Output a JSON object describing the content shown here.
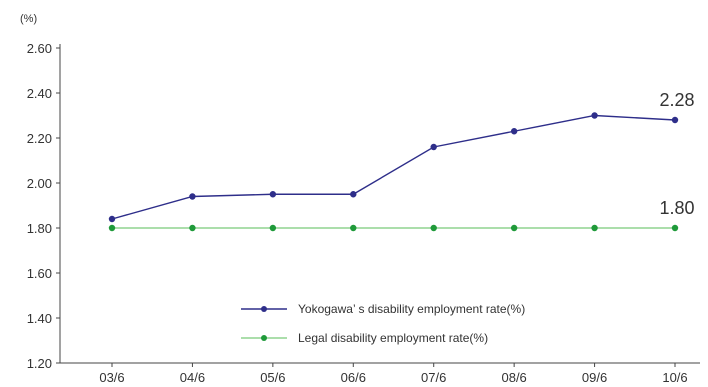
{
  "chart_data": {
    "type": "line",
    "unit_label": "(%)",
    "categories": [
      "03/6",
      "04/6",
      "05/6",
      "06/6",
      "07/6",
      "08/6",
      "09/6",
      "10/6"
    ],
    "y_ticks": [
      "2.60",
      "2.40",
      "2.20",
      "2.00",
      "1.80",
      "1.60",
      "1.40",
      "1.20"
    ],
    "ylim": [
      1.2,
      2.6
    ],
    "grid": false,
    "legend_position": "bottom-right",
    "series": [
      {
        "name": "Yokogawa’ s disability employment rate(%)",
        "values": [
          1.84,
          1.94,
          1.95,
          1.95,
          2.16,
          2.23,
          2.3,
          2.28
        ],
        "color": "#2e2e8a",
        "end_label": "2.28"
      },
      {
        "name": "Legal disability employment rate(%)",
        "values": [
          1.8,
          1.8,
          1.8,
          1.8,
          1.8,
          1.8,
          1.8,
          1.8
        ],
        "color": "#8fd48f",
        "marker_color": "#1f9a3a",
        "end_label": "1.80"
      }
    ]
  }
}
